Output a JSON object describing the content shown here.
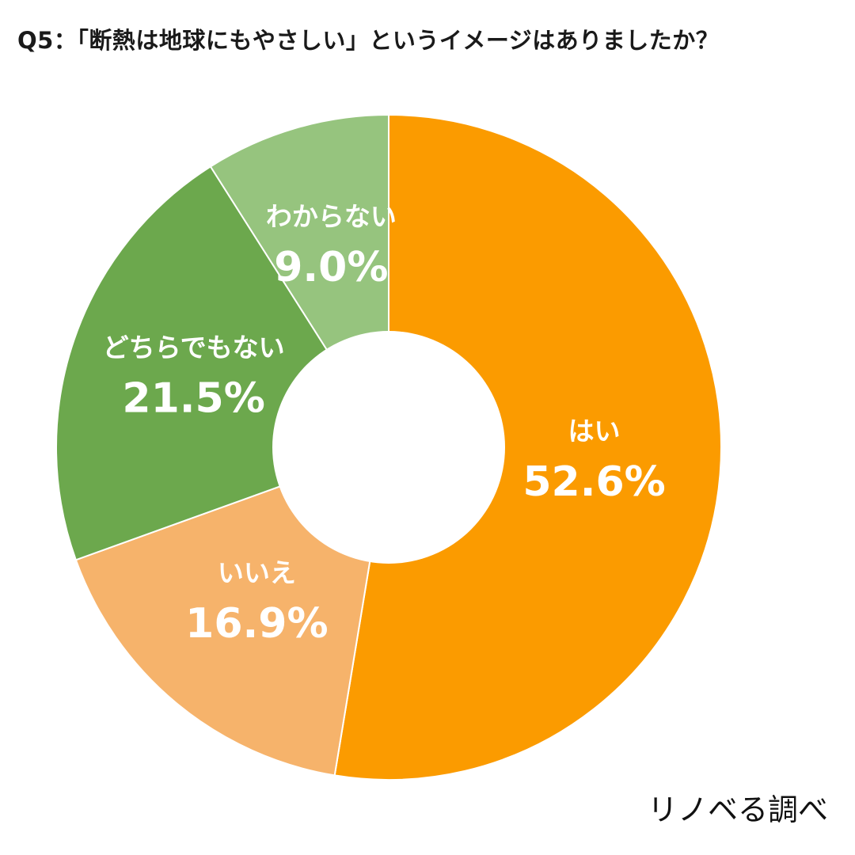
{
  "chart_data": {
    "type": "pie",
    "donut": true,
    "title": "Q5：「断熱は地球にもやさしい」というイメージはありましたか？",
    "source": "リノベる調べ",
    "slices": [
      {
        "label": "はい",
        "value": 52.6,
        "value_text": "52.6%",
        "color": "#FB9B00"
      },
      {
        "label": "いいえ",
        "value": 16.9,
        "value_text": "16.9%",
        "color": "#F6B36B"
      },
      {
        "label": "どちらでもない",
        "value": 21.5,
        "value_text": "21.5%",
        "color": "#6CA84D"
      },
      {
        "label": "わからない",
        "value": 9.0,
        "value_text": "9.0%",
        "color": "#96C47E"
      }
    ]
  }
}
